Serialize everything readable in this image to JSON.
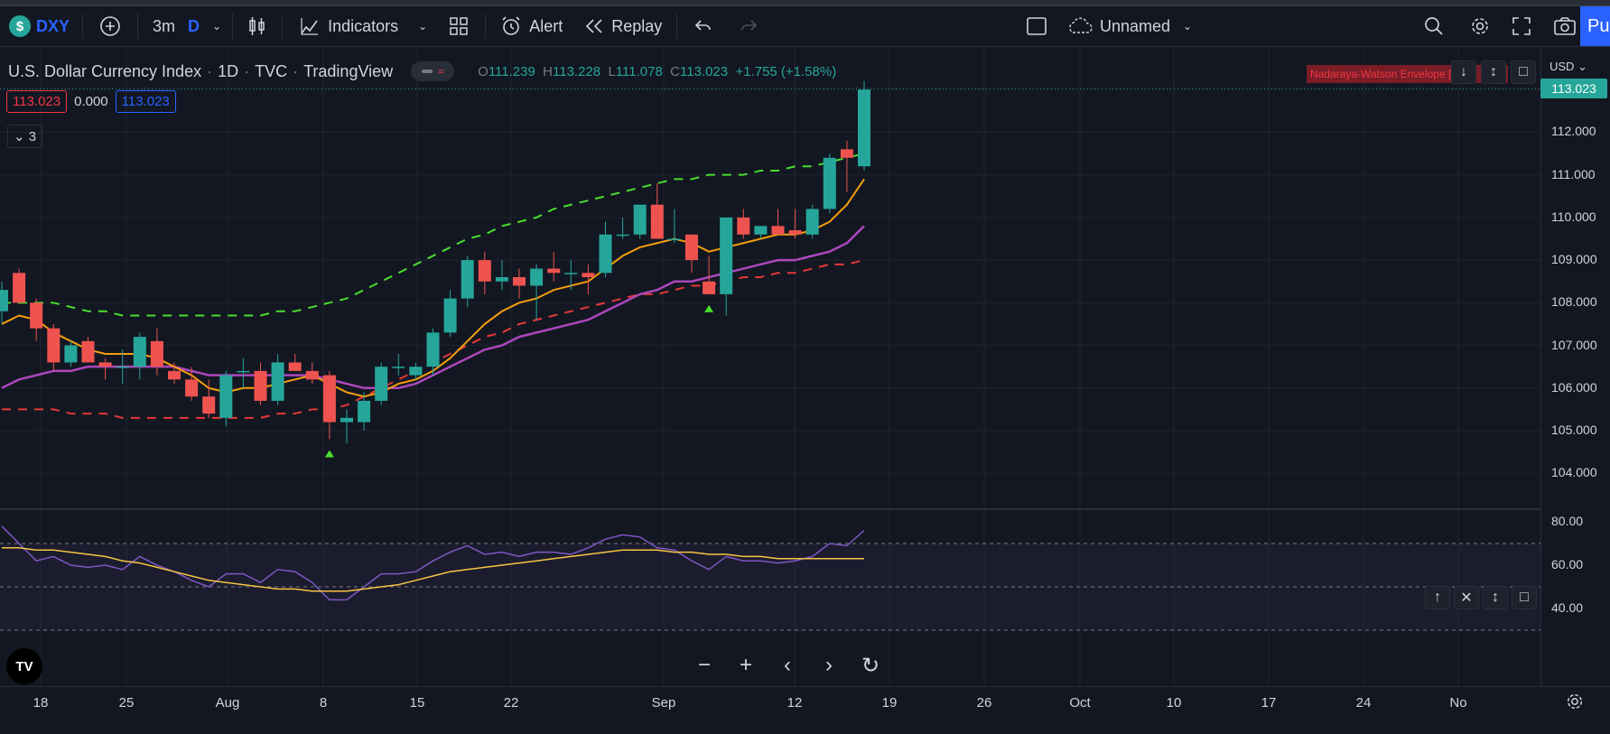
{
  "topbar": {
    "symbol": "DXY",
    "symbol_logo": "$",
    "interval": "3m",
    "chart_range": "D",
    "indicators_label": "Indicators",
    "alert_label": "Alert",
    "replay_label": "Replay",
    "layout_name": "Unnamed",
    "publish_label": "Pu"
  },
  "legend": {
    "name": "U.S. Dollar Currency Index",
    "timeframe": "1D",
    "exchange": "TVC",
    "source": "TradingView",
    "o_label": "O",
    "o_value": "111.239",
    "h_label": "H",
    "h_value": "113.228",
    "l_label": "L",
    "l_value": "111.078",
    "c_label": "C",
    "c_value": "113.023",
    "change": "+1.755 (+1.58%)"
  },
  "indicator_values": {
    "v1": "113.023",
    "v2": "0.000",
    "v3": "113.023",
    "collapsed_count": "3"
  },
  "indicator_label": "Nadaraya-Watson Envelope [",
  "price_scale": {
    "currency": "USD",
    "current": "113.023",
    "labels": [
      "112.000",
      "111.000",
      "110.000",
      "109.000",
      "108.000",
      "107.000",
      "106.000",
      "105.000",
      "104.000"
    ],
    "osc_labels": [
      "80.00",
      "60.00",
      "40.00"
    ]
  },
  "time_labels": [
    "18",
    "25",
    "Aug",
    "8",
    "15",
    "22",
    "Sep",
    "12",
    "19",
    "26",
    "Oct",
    "10",
    "17",
    "24",
    "No"
  ],
  "colors": {
    "up": "#26a69a",
    "down": "#ef5350",
    "background": "#131722",
    "accent": "#2962ff"
  },
  "chart_data": {
    "type": "candlestick",
    "candles": [
      {
        "o": 107.8,
        "h": 108.5,
        "l": 107.5,
        "c": 108.3
      },
      {
        "o": 108.7,
        "h": 108.8,
        "l": 108.0,
        "c": 108.0
      },
      {
        "o": 108.0,
        "h": 108.1,
        "l": 107.1,
        "c": 107.4
      },
      {
        "o": 107.4,
        "h": 107.5,
        "l": 106.4,
        "c": 106.6
      },
      {
        "o": 106.6,
        "h": 107.1,
        "l": 106.5,
        "c": 107.0
      },
      {
        "o": 107.1,
        "h": 107.2,
        "l": 106.6,
        "c": 106.6
      },
      {
        "o": 106.6,
        "h": 106.7,
        "l": 106.2,
        "c": 106.5
      },
      {
        "o": 106.5,
        "h": 106.9,
        "l": 106.1,
        "c": 106.5
      },
      {
        "o": 106.5,
        "h": 107.3,
        "l": 106.2,
        "c": 107.2
      },
      {
        "o": 107.1,
        "h": 107.4,
        "l": 106.3,
        "c": 106.5
      },
      {
        "o": 106.4,
        "h": 106.6,
        "l": 106.1,
        "c": 106.2
      },
      {
        "o": 106.2,
        "h": 106.5,
        "l": 105.7,
        "c": 105.8
      },
      {
        "o": 105.8,
        "h": 106.2,
        "l": 105.3,
        "c": 105.4
      },
      {
        "o": 105.3,
        "h": 106.4,
        "l": 105.1,
        "c": 106.3
      },
      {
        "o": 106.4,
        "h": 106.7,
        "l": 106.0,
        "c": 106.4
      },
      {
        "o": 106.4,
        "h": 106.6,
        "l": 105.6,
        "c": 105.7
      },
      {
        "o": 105.7,
        "h": 106.8,
        "l": 105.6,
        "c": 106.6
      },
      {
        "o": 106.6,
        "h": 106.8,
        "l": 106.4,
        "c": 106.4
      },
      {
        "o": 106.4,
        "h": 106.6,
        "l": 106.1,
        "c": 106.2
      },
      {
        "o": 106.3,
        "h": 106.4,
        "l": 104.8,
        "c": 105.2
      },
      {
        "o": 105.2,
        "h": 105.5,
        "l": 104.7,
        "c": 105.3
      },
      {
        "o": 105.2,
        "h": 105.9,
        "l": 105.0,
        "c": 105.7
      },
      {
        "o": 105.7,
        "h": 106.6,
        "l": 105.6,
        "c": 106.5
      },
      {
        "o": 106.5,
        "h": 106.8,
        "l": 106.3,
        "c": 106.5
      },
      {
        "o": 106.3,
        "h": 106.6,
        "l": 106.2,
        "c": 106.5
      },
      {
        "o": 106.5,
        "h": 107.4,
        "l": 106.3,
        "c": 107.3
      },
      {
        "o": 107.3,
        "h": 108.3,
        "l": 107.2,
        "c": 108.1
      },
      {
        "o": 108.1,
        "h": 109.1,
        "l": 107.9,
        "c": 109.0
      },
      {
        "o": 109.0,
        "h": 109.2,
        "l": 108.2,
        "c": 108.5
      },
      {
        "o": 108.5,
        "h": 109.0,
        "l": 108.3,
        "c": 108.6
      },
      {
        "o": 108.6,
        "h": 108.8,
        "l": 108.1,
        "c": 108.4
      },
      {
        "o": 108.4,
        "h": 108.9,
        "l": 107.6,
        "c": 108.8
      },
      {
        "o": 108.8,
        "h": 109.2,
        "l": 108.5,
        "c": 108.7
      },
      {
        "o": 108.7,
        "h": 109.0,
        "l": 108.3,
        "c": 108.7
      },
      {
        "o": 108.7,
        "h": 108.9,
        "l": 108.2,
        "c": 108.6
      },
      {
        "o": 108.7,
        "h": 109.9,
        "l": 108.6,
        "c": 109.6
      },
      {
        "o": 109.6,
        "h": 110.0,
        "l": 109.5,
        "c": 109.6
      },
      {
        "o": 109.6,
        "h": 110.3,
        "l": 109.5,
        "c": 110.3
      },
      {
        "o": 110.3,
        "h": 110.8,
        "l": 109.5,
        "c": 109.5
      },
      {
        "o": 109.5,
        "h": 110.2,
        "l": 109.4,
        "c": 109.5
      },
      {
        "o": 109.6,
        "h": 109.6,
        "l": 108.7,
        "c": 109.0
      },
      {
        "o": 108.5,
        "h": 109.1,
        "l": 108.2,
        "c": 108.2
      },
      {
        "o": 108.2,
        "h": 110.0,
        "l": 107.7,
        "c": 110.0
      },
      {
        "o": 110.0,
        "h": 110.2,
        "l": 109.5,
        "c": 109.6
      },
      {
        "o": 109.6,
        "h": 109.8,
        "l": 109.5,
        "c": 109.8
      },
      {
        "o": 109.8,
        "h": 110.2,
        "l": 109.6,
        "c": 109.6
      },
      {
        "o": 109.7,
        "h": 110.2,
        "l": 109.5,
        "c": 109.6
      },
      {
        "o": 109.6,
        "h": 110.3,
        "l": 109.5,
        "c": 110.2
      },
      {
        "o": 110.2,
        "h": 111.5,
        "l": 110.1,
        "c": 111.4
      },
      {
        "o": 111.6,
        "h": 111.8,
        "l": 110.6,
        "c": 111.4
      },
      {
        "o": 111.2,
        "h": 113.2,
        "l": 111.1,
        "c": 113.0
      }
    ],
    "ema_orange": [
      107.5,
      107.7,
      107.6,
      107.3,
      107.1,
      106.9,
      106.8,
      106.8,
      106.8,
      106.7,
      106.5,
      106.3,
      106.0,
      105.9,
      106.0,
      106.0,
      106.1,
      106.2,
      106.3,
      106.1,
      105.9,
      105.8,
      105.9,
      106.1,
      106.2,
      106.4,
      106.7,
      107.1,
      107.5,
      107.8,
      108.0,
      108.1,
      108.3,
      108.4,
      108.5,
      108.8,
      109.1,
      109.3,
      109.4,
      109.5,
      109.4,
      109.2,
      109.3,
      109.4,
      109.5,
      109.6,
      109.6,
      109.7,
      109.9,
      110.3,
      110.9
    ],
    "ma_purple": [
      106.0,
      106.2,
      106.3,
      106.4,
      106.4,
      106.5,
      106.5,
      106.5,
      106.5,
      106.5,
      106.5,
      106.4,
      106.3,
      106.3,
      106.3,
      106.3,
      106.3,
      106.3,
      106.3,
      106.2,
      106.1,
      106.0,
      106.0,
      106.0,
      106.1,
      106.3,
      106.5,
      106.7,
      106.9,
      107.0,
      107.2,
      107.3,
      107.4,
      107.5,
      107.6,
      107.8,
      108.0,
      108.2,
      108.3,
      108.5,
      108.5,
      108.6,
      108.7,
      108.8,
      108.9,
      109.0,
      109.0,
      109.1,
      109.2,
      109.4,
      109.8
    ],
    "nw_upper": [
      108.0,
      108.0,
      108.0,
      108.0,
      107.9,
      107.8,
      107.8,
      107.7,
      107.7,
      107.7,
      107.7,
      107.7,
      107.7,
      107.7,
      107.7,
      107.7,
      107.8,
      107.8,
      107.9,
      108.0,
      108.1,
      108.3,
      108.5,
      108.7,
      108.9,
      109.1,
      109.3,
      109.5,
      109.6,
      109.8,
      109.9,
      110.0,
      110.2,
      110.3,
      110.4,
      110.5,
      110.6,
      110.7,
      110.8,
      110.9,
      110.9,
      111.0,
      111.0,
      111.0,
      111.1,
      111.1,
      111.2,
      111.2,
      111.3,
      111.4,
      111.5
    ],
    "nw_lower": [
      105.5,
      105.5,
      105.5,
      105.5,
      105.4,
      105.4,
      105.4,
      105.3,
      105.3,
      105.3,
      105.3,
      105.3,
      105.3,
      105.3,
      105.3,
      105.3,
      105.4,
      105.4,
      105.5,
      105.5,
      105.6,
      105.8,
      106.0,
      106.2,
      106.4,
      106.6,
      106.8,
      107.0,
      107.2,
      107.3,
      107.5,
      107.6,
      107.7,
      107.8,
      107.9,
      108.0,
      108.1,
      108.2,
      108.2,
      108.3,
      108.4,
      108.4,
      108.5,
      108.6,
      108.6,
      108.7,
      108.7,
      108.8,
      108.9,
      108.9,
      109.0
    ],
    "signals_up": [
      19,
      41
    ],
    "osc_rsi": [
      78,
      70,
      62,
      64,
      60,
      59,
      60,
      58,
      64,
      60,
      57,
      53,
      50,
      56,
      56,
      52,
      58,
      57,
      52,
      44,
      44,
      50,
      56,
      56,
      57,
      62,
      66,
      69,
      65,
      66,
      64,
      66,
      66,
      65,
      68,
      72,
      74,
      73,
      68,
      67,
      62,
      58,
      64,
      62,
      62,
      61,
      62,
      64,
      70,
      69,
      76
    ],
    "osc_signal": [
      68,
      68,
      67,
      67,
      66,
      65,
      64,
      62,
      61,
      59,
      57,
      55,
      53,
      52,
      51,
      50,
      49,
      49,
      48,
      48,
      48,
      49,
      50,
      51,
      53,
      55,
      57,
      58,
      59,
      60,
      61,
      62,
      63,
      64,
      65,
      66,
      67,
      67,
      67,
      66,
      66,
      65,
      65,
      64,
      64,
      63,
      63,
      63,
      63,
      63,
      63
    ],
    "price_range": [
      103.2,
      114.0
    ],
    "osc_range": [
      30,
      85
    ],
    "osc_bands": [
      70,
      50,
      30
    ]
  }
}
